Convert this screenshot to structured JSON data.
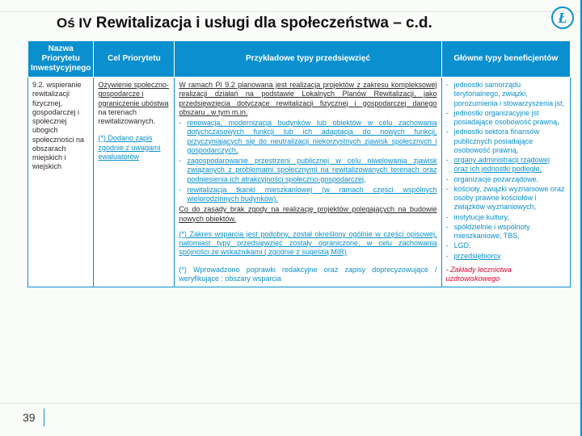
{
  "logo_letter": "Ł",
  "title_prefix": "Oś IV",
  "title_rest": "Rewitalizacja i usługi dla społeczeństwa – c.d.",
  "page_number": "39",
  "headers": {
    "name": "Nazwa Priorytetu Inwestycyjnego",
    "goal": "Cel Priorytetu",
    "examples": "Przykładowe typy przedsięwzięć",
    "beneficiaries": "Główne typy beneficjentów"
  },
  "row": {
    "name": "9.2. wspieranie rewitalizacji fizycznej, gospodarczej i społecznej ubogich społeczności na obszarach miejskich i wiejskich",
    "goal_underlined": "Ożywienie społeczno-gospodarcze i ograniczenie ubóstwa",
    "goal_tail": " na terenach rewitalizowanych.",
    "goal_note": "(*) Dodano zapis zgodnie z uwagami ewaluatorów",
    "examples": {
      "intro": "W ramach PI 9.2 planowana jest realizacja projektów z zakresu kompleksowej realizacji działań na podstawie Lokalnych Planów Rewitalizacji, jako przedsięwzięcia dotyczące rewitalizacji fizycznej i gospodarczej danego obszaru , w tym m.in.",
      "bullets": [
        "renowacja, modernizacja budynków lub obiektów  w celu zachowania dotychczasowych funkcji lub ich adaptacja do nowych funkcji, przyczyniających się do neutralizacji niekorzystnych zjawisk społecznych i gospodarczych,",
        "zagospodarowanie przestrzeni publicznej w celu niwelowania zjawisk związanych z problemami społecznymi na rewitalizowanych terenach oraz podniesienia ich atrakcyjności społeczno-gospodarczej,",
        "rewitalizacja tkanki mieszkaniowej (w ramach części wspólnych wielorodzinnych budynków)."
      ],
      "cod": "Co do zasady brak zgody na realizację projektów polegających na budowie nowych obiektów.",
      "note": "(*) Zakres wsparcia jest podobny, został określony ogólnie w części opisowej, natomiast typy przedsięwzięć zostały ograniczone, w celu zachowania spójności ze wskaźnikami ( zgodnie z sugestią MIR)",
      "redak": "(*) Wprowadzono poprawki redakcyjne oraz zapisy doprecyzowujące / weryfikujące : obszary wsparcia"
    },
    "beneficiaries": [
      "jednostki samorządu terytorialnego, związki, porozumienia  i stowarzyszenia jst,",
      "jednostki organizacyjne jst posiadające osobowość prawną,",
      "jednostki sektora finansów publicznych posiadające osobowość prawną,",
      "organy administracji rządowej oraz ich jednostki podległe,",
      "organizacje pozarządowe,",
      "kościoły, związki wyznaniowe oraz osoby prawne kościołów i związków wyznaniowych,",
      "instytucje kultury,",
      "spółdzielnie i wspólnoty mieszkaniowe, TBS,",
      "LGD,",
      "przedsiębiorcy"
    ],
    "benef_foot": "- Zakłady lecznictwa uzdrowiskowego"
  },
  "colors": {
    "brand": "#0a8fcf",
    "redline": "#e4002b",
    "bg": "#fafcf9"
  }
}
